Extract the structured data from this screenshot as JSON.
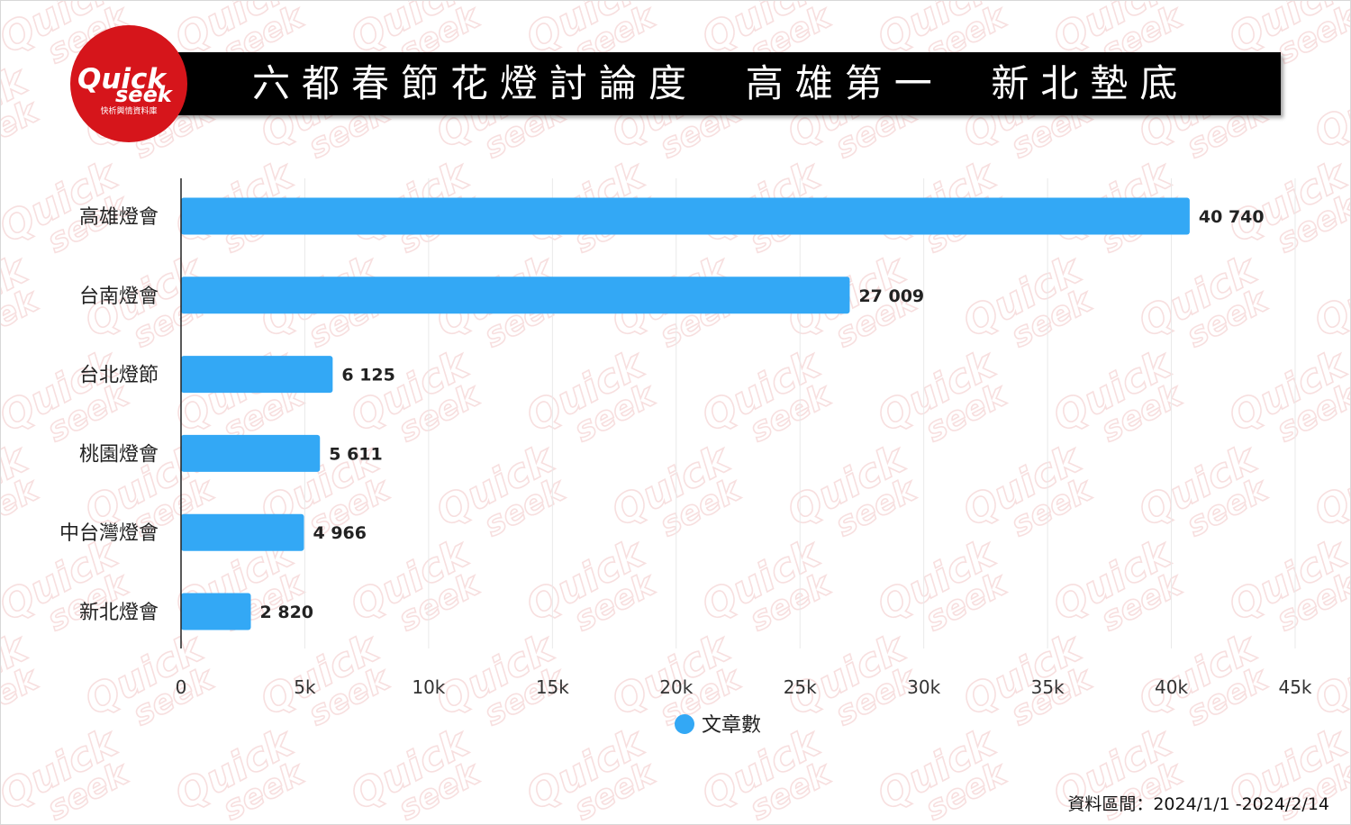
{
  "logo": {
    "word_top": "Quick",
    "word_bottom": "seek",
    "subtitle": "快析輿情資料庫",
    "color": "#d6151b"
  },
  "title": "六都春節花燈討論度  高雄第一  新北墊底",
  "chart_data": {
    "type": "bar",
    "orientation": "horizontal",
    "categories": [
      "高雄燈會",
      "台南燈會",
      "台北燈節",
      "桃園燈會",
      "中台灣燈會",
      "新北燈會"
    ],
    "series": [
      {
        "name": "文章數",
        "values": [
          40740,
          27009,
          6125,
          5611,
          4966,
          2820
        ],
        "value_labels": [
          "40 740",
          "27 009",
          "6 125",
          "5 611",
          "4 966",
          "2 820"
        ],
        "color": "#33a8f5"
      }
    ],
    "xlim": [
      0,
      45000
    ],
    "xticks": [
      0,
      5000,
      10000,
      15000,
      20000,
      25000,
      30000,
      35000,
      40000,
      45000
    ],
    "xtick_labels": [
      "0",
      "5k",
      "10k",
      "15k",
      "20k",
      "25k",
      "30k",
      "35k",
      "40k",
      "45k"
    ],
    "grid": true,
    "legend_position": "bottom-center"
  },
  "footer_note": "資料區間：2024/1/1 -2024/2/14"
}
